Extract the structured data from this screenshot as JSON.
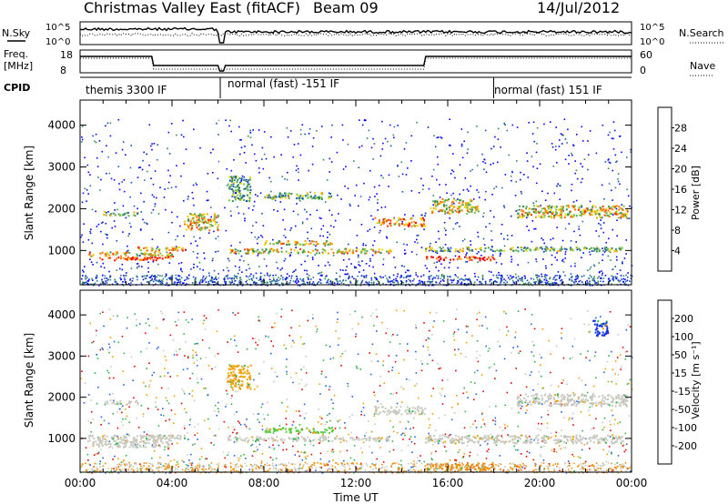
{
  "header": {
    "title": "Christmas Valley East (fitACF)",
    "beam": "Beam 09",
    "date": "14/Jul/2012"
  },
  "strips": {
    "nsky_label": "N.Sky",
    "nsearch_label": "N.Search",
    "freq_label_line1": "Freq.",
    "freq_label_line2": "[MHz]",
    "nave_label": "Nave",
    "cpid_label": "CPID",
    "nsky_ticks": [
      "10^5",
      "10^0"
    ],
    "nsearch_ticks": [
      "10^5",
      "10^0"
    ],
    "freq_ticks": [
      "18",
      "8"
    ],
    "nave_ticks": [
      "60",
      "0"
    ],
    "cpid_segments": [
      {
        "start_h": 0,
        "end_h": 6.1,
        "label": "themis 3300 IF"
      },
      {
        "start_h": 6.1,
        "end_h": 18.0,
        "label": "normal (fast) -151 IF"
      },
      {
        "start_h": 18.0,
        "end_h": 24,
        "label": "normal (fast) 151 IF"
      }
    ]
  },
  "chart_data": [
    {
      "type": "heatmap",
      "name": "power",
      "ylabel": "Slant Range [km]",
      "xlim": [
        0,
        24
      ],
      "ylim": [
        180,
        4600
      ],
      "yticks": [
        1000,
        2000,
        3000,
        4000
      ],
      "colorbar": {
        "label": "Power [dB]",
        "ticks": [
          "4",
          "8",
          "12",
          "16",
          "20",
          "24",
          "28"
        ],
        "colors": [
          "#0000ff",
          "#0b4fb0",
          "#2f6fa0",
          "#2e8b57",
          "#4fa64f",
          "#7cc43c",
          "#f0d700",
          "#f7a400",
          "#ff7000",
          "#ff3000",
          "#ee0000"
        ]
      },
      "bands": [
        {
          "t": [
            0.8,
            4.0
          ],
          "r": [
            780,
            880
          ],
          "level": 0.85
        },
        {
          "t": [
            0.3,
            4.0
          ],
          "r": [
            880,
            980
          ],
          "level": 0.6
        },
        {
          "t": [
            2.4,
            4.6
          ],
          "r": [
            1000,
            1100
          ],
          "level": 0.7
        },
        {
          "t": [
            1.0,
            2.5
          ],
          "r": [
            1850,
            1950
          ],
          "level": 0.5
        },
        {
          "t": [
            4.5,
            6.0
          ],
          "r": [
            1500,
            1900
          ],
          "level": 0.6
        },
        {
          "t": [
            6.4,
            13.5
          ],
          "r": [
            950,
            1060
          ],
          "level": 0.6
        },
        {
          "t": [
            8.0,
            11.0
          ],
          "r": [
            1150,
            1250
          ],
          "level": 0.55
        },
        {
          "t": [
            12.8,
            15.0
          ],
          "r": [
            1600,
            1800
          ],
          "level": 0.75
        },
        {
          "t": [
            15.0,
            18.0
          ],
          "r": [
            780,
            880
          ],
          "level": 0.9
        },
        {
          "t": [
            15.0,
            23.6
          ],
          "r": [
            1000,
            1100
          ],
          "level": 0.45
        },
        {
          "t": [
            15.2,
            17.3
          ],
          "r": [
            1900,
            2250
          ],
          "level": 0.55
        },
        {
          "t": [
            19.0,
            23.8
          ],
          "r": [
            1800,
            2100
          ],
          "level": 0.6
        },
        {
          "t": [
            8.0,
            11.0
          ],
          "r": [
            2250,
            2400
          ],
          "level": 0.4
        },
        {
          "t": [
            6.4,
            7.4
          ],
          "r": [
            2200,
            2800
          ],
          "level": 0.35
        }
      ]
    },
    {
      "type": "heatmap",
      "name": "velocity",
      "xlabel": "Time UT",
      "ylabel": "Slant Range [km]",
      "xlim": [
        0,
        24
      ],
      "ylim": [
        180,
        4600
      ],
      "xticks": [
        "00:00",
        "04:00",
        "08:00",
        "12:00",
        "16:00",
        "20:00",
        "00:00"
      ],
      "yticks": [
        1000,
        2000,
        3000,
        4000
      ],
      "colorbar": {
        "label": "Velocity [m s⁻¹]",
        "ticks": [
          "200",
          "100",
          "50",
          "15",
          "-15",
          "-50",
          "-100",
          "-200"
        ],
        "colors": [
          "#0a1cc8",
          "#1e60e0",
          "#2fb34a",
          "#7cdc3c",
          "#c0c0c0",
          "#f0a000",
          "#f07000",
          "#ff3000",
          "#e00000"
        ]
      },
      "bands": [
        {
          "t": [
            0.3,
            4.0
          ],
          "r": [
            800,
            1100
          ],
          "color": "#c8c8c0"
        },
        {
          "t": [
            1.0,
            2.5
          ],
          "r": [
            1850,
            1950
          ],
          "color": "#c8c8c0"
        },
        {
          "t": [
            2.5,
            4.6
          ],
          "r": [
            1000,
            1100
          ],
          "color": "#c8c8c0"
        },
        {
          "t": [
            6.4,
            13.5
          ],
          "r": [
            950,
            1060
          ],
          "color": "#c8c8c0"
        },
        {
          "t": [
            8.0,
            11.0
          ],
          "r": [
            1150,
            1280
          ],
          "color": "#5ccc3c"
        },
        {
          "t": [
            12.8,
            15.0
          ],
          "r": [
            1600,
            1800
          ],
          "color": "#c8c8c0"
        },
        {
          "t": [
            15.0,
            23.6
          ],
          "r": [
            900,
            1100
          ],
          "color": "#c8c8c0"
        },
        {
          "t": [
            15.0,
            18.0
          ],
          "r": [
            250,
            420
          ],
          "color": "#f08a00"
        },
        {
          "t": [
            19.0,
            23.8
          ],
          "r": [
            1800,
            2100
          ],
          "color": "#c8c8c0"
        },
        {
          "t": [
            22.3,
            23.0
          ],
          "r": [
            3500,
            3900
          ],
          "color": "#1030e0"
        },
        {
          "t": [
            6.4,
            7.4
          ],
          "r": [
            2200,
            2800
          ],
          "color": "#f0a000"
        }
      ]
    }
  ]
}
